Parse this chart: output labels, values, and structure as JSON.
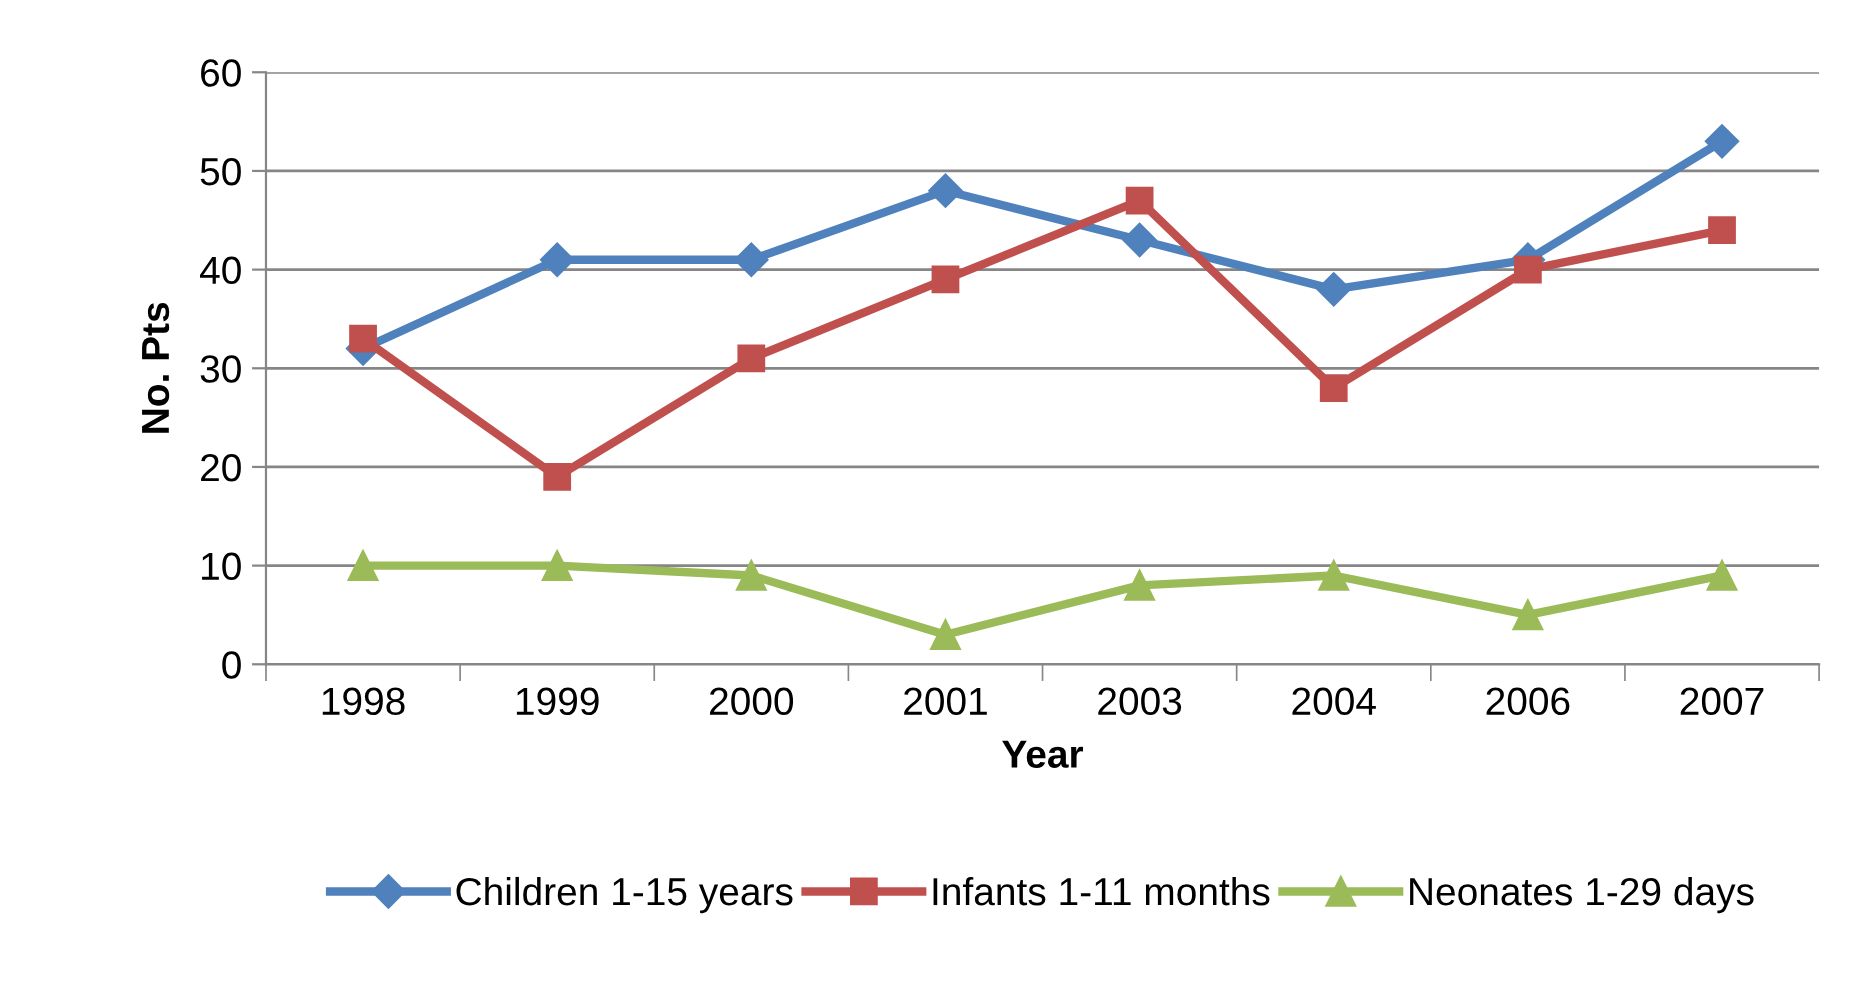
{
  "chart_data": {
    "type": "line",
    "xlabel": "Year",
    "ylabel": "No. Pts",
    "categories": [
      "1998",
      "1999",
      "2000",
      "2001",
      "2003",
      "2004",
      "2006",
      "2007"
    ],
    "series": [
      {
        "name": "Children 1-15 years",
        "color": "#4f81bd",
        "marker": "diamond",
        "values": [
          32,
          41,
          41,
          48,
          43,
          38,
          41,
          53
        ]
      },
      {
        "name": "Infants 1-11 months",
        "color": "#c0504d",
        "marker": "square",
        "values": [
          33,
          19,
          31,
          39,
          47,
          28,
          40,
          44
        ]
      },
      {
        "name": "Neonates 1-29 days",
        "color": "#9bbb59",
        "marker": "triangle",
        "values": [
          10,
          10,
          9,
          3,
          8,
          9,
          5,
          9
        ]
      }
    ],
    "ylim": [
      0,
      60
    ],
    "yticks": [
      0,
      10,
      20,
      30,
      40,
      50,
      60
    ],
    "grid": "y",
    "legend": "bottom",
    "line_style": "solid"
  }
}
